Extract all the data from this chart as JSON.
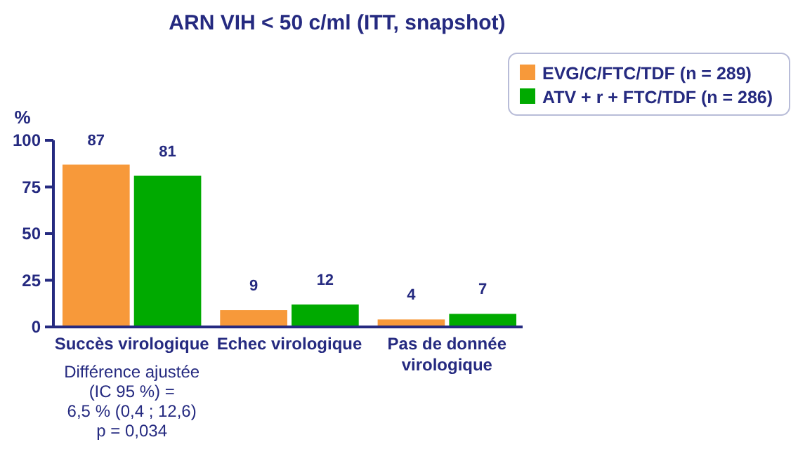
{
  "chart_data": {
    "type": "bar",
    "title": "ARN VIH < 50 c/ml (ITT, snapshot)",
    "ylabel": "%",
    "categories": [
      "Succès virologique",
      "Echec virologique",
      "Pas de donnée virologique"
    ],
    "series": [
      {
        "name": "EVG/C/FTC/TDF (n = 289)",
        "color": "#f7993a",
        "values": [
          87,
          9,
          4
        ]
      },
      {
        "name": "ATV + r + FTC/TDF (n = 286)",
        "color": "#00aa00",
        "values": [
          81,
          12,
          7
        ]
      }
    ],
    "ylim": [
      0,
      100
    ],
    "yticks": [
      0,
      25,
      50,
      75,
      100
    ],
    "data_labels": true,
    "legend": "top right",
    "grid": false,
    "annotations": [
      "Différence ajustée\n(IC 95 %) =\n6,5 % (0,4 ; 12,6)\np = 0,034"
    ]
  }
}
